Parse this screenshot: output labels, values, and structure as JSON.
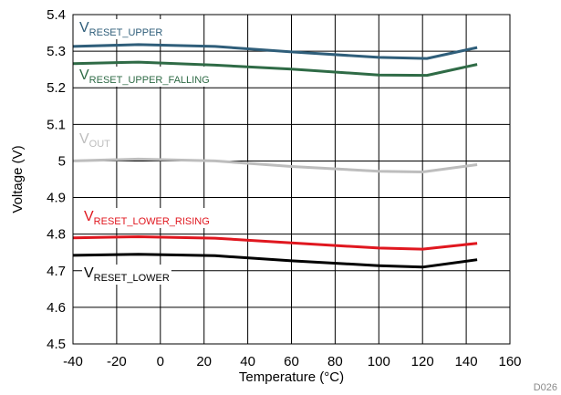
{
  "chart_data": {
    "type": "line",
    "xlabel": "Temperature (°C)",
    "ylabel": "Voltage (V)",
    "xlim": [
      -40,
      160
    ],
    "ylim": [
      4.5,
      5.4
    ],
    "xticks": [
      -40,
      -20,
      0,
      20,
      40,
      60,
      80,
      100,
      120,
      140,
      160
    ],
    "yticks": [
      "4.5",
      "4.6",
      "4.7",
      "4.8",
      "4.9",
      "5",
      "5.1",
      "5.2",
      "5.3",
      "5.4"
    ],
    "grid": true,
    "series": [
      {
        "name_main": "V",
        "name_sub": "RESET_UPPER",
        "color": "#2f5e7a",
        "x": [
          -40,
          -10,
          25,
          60,
          100,
          122,
          145
        ],
        "y": [
          5.313,
          5.318,
          5.313,
          5.298,
          5.283,
          5.28,
          5.31
        ]
      },
      {
        "name_main": "V",
        "name_sub": "RESET_UPPER_FALLING",
        "color": "#2f6b46",
        "x": [
          -40,
          -10,
          25,
          60,
          100,
          122,
          145
        ],
        "y": [
          5.266,
          5.27,
          5.262,
          5.251,
          5.235,
          5.234,
          5.264
        ]
      },
      {
        "name_main": "V",
        "name_sub": "OUT",
        "color": "#bdbdbd",
        "x": [
          -40,
          -10,
          25,
          60,
          100,
          120,
          145
        ],
        "y": [
          5.0,
          5.005,
          5.0,
          4.985,
          4.972,
          4.97,
          4.99
        ]
      },
      {
        "name_main": "V",
        "name_sub": "RESET_LOWER_RISING",
        "color": "#e0171f",
        "x": [
          -40,
          -10,
          25,
          60,
          100,
          120,
          145
        ],
        "y": [
          4.79,
          4.793,
          4.789,
          4.776,
          4.762,
          4.759,
          4.775
        ]
      },
      {
        "name_main": "V",
        "name_sub": "RESET_LOWER",
        "color": "#000000",
        "x": [
          -40,
          -10,
          25,
          60,
          100,
          120,
          145
        ],
        "y": [
          4.742,
          4.745,
          4.741,
          4.727,
          4.714,
          4.71,
          4.73
        ]
      }
    ],
    "note": "D026"
  }
}
